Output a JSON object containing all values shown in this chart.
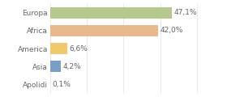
{
  "categories": [
    "Europa",
    "Africa",
    "America",
    "Asia",
    "Apolidi"
  ],
  "values": [
    47.1,
    42.0,
    6.6,
    4.2,
    0.1
  ],
  "labels": [
    "47,1%",
    "42,0%",
    "6,6%",
    "4,2%",
    "0,1%"
  ],
  "bar_colors": [
    "#b5c98e",
    "#e8b98a",
    "#f0c96e",
    "#7b9ec7",
    "#d0d0d0"
  ],
  "background_color": "#ffffff",
  "label_fontsize": 6.5,
  "tick_fontsize": 6.5,
  "xlim": 58,
  "bar_height": 0.65
}
